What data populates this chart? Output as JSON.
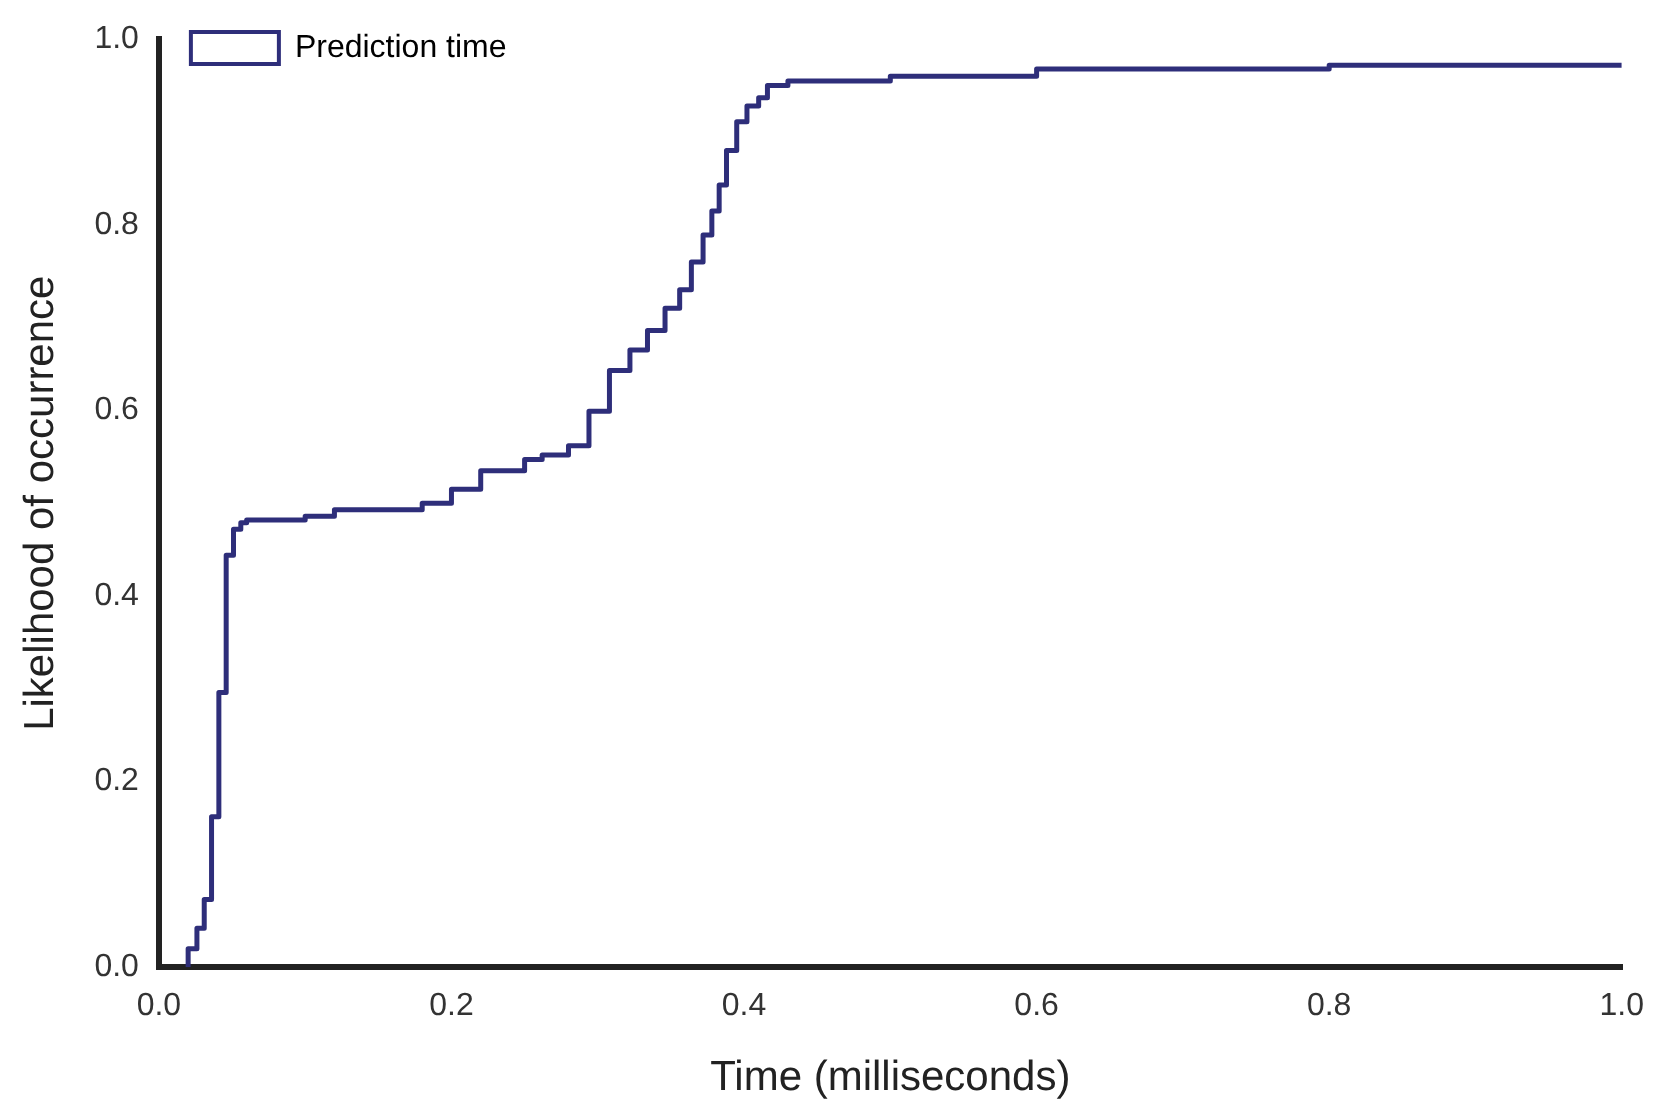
{
  "chart_data": {
    "type": "step",
    "xlabel": "Time (milliseconds)",
    "ylabel": "Likelihood of occurrence",
    "x": [
      0.02,
      0.026,
      0.031,
      0.036,
      0.041,
      0.046,
      0.051,
      0.056,
      0.06,
      0.1,
      0.12,
      0.18,
      0.2,
      0.22,
      0.25,
      0.262,
      0.28,
      0.294,
      0.308,
      0.322,
      0.334,
      0.346,
      0.356,
      0.364,
      0.372,
      0.378,
      0.383,
      0.388,
      0.395,
      0.402,
      0.41,
      0.416,
      0.43,
      0.5,
      0.6,
      0.8,
      1.0
    ],
    "series": [
      {
        "name": "Prediction time",
        "color": "#2e2e7a",
        "values": [
          0.0,
          0.02,
          0.042,
          0.073,
          0.162,
          0.296,
          0.444,
          0.472,
          0.479,
          0.482,
          0.486,
          0.493,
          0.5,
          0.515,
          0.535,
          0.547,
          0.552,
          0.562,
          0.599,
          0.643,
          0.665,
          0.686,
          0.71,
          0.73,
          0.76,
          0.789,
          0.815,
          0.843,
          0.88,
          0.911,
          0.928,
          0.937,
          0.95,
          0.955,
          0.96,
          0.968,
          0.972
        ]
      }
    ],
    "xlim": [
      0,
      1
    ],
    "ylim": [
      0,
      1
    ],
    "xticks": [
      {
        "value": 0,
        "label": "0.0"
      },
      0.2,
      0.4,
      0.6,
      0.8,
      {
        "value": 1,
        "label": "1.0"
      }
    ],
    "yticks": [
      {
        "value": 0,
        "label": "0.0"
      },
      0.2,
      0.4,
      0.6,
      0.8,
      {
        "value": 1,
        "label": "1.0"
      }
    ],
    "grid": false,
    "legend": "top left",
    "line_style": "solid",
    "marker": "none"
  }
}
